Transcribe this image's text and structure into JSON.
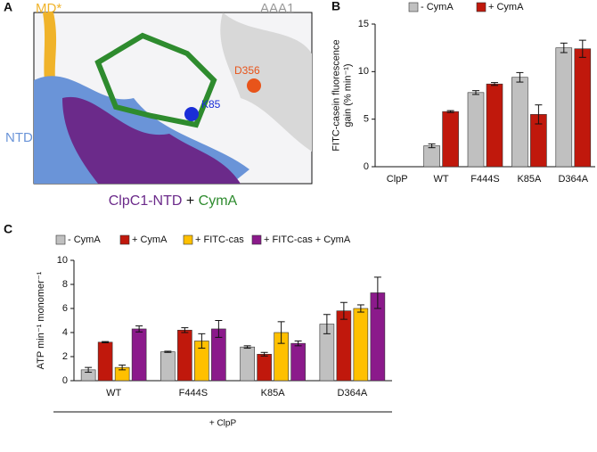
{
  "figure": {
    "panel_a": {
      "panel": "A",
      "md": "MD*",
      "aaa1": "AAA1",
      "d356": "D356",
      "k85": "K85",
      "ntd": "NTD",
      "caption_protein": "ClpC1-NTD",
      "caption_plus": "+",
      "caption_ligand": "CymA"
    }
  },
  "chart_data": [
    {
      "type": "bar",
      "panel": "B",
      "ylabel": [
        "FITC-casein fluorescence",
        "gain (% min⁻¹)"
      ],
      "categories": [
        "ClpP",
        "WT",
        "F444S",
        "K85A",
        "D364A"
      ],
      "series": [
        {
          "name": "- CymA",
          "color": "#c0c0c0",
          "values": [
            0,
            2.2,
            7.8,
            9.4,
            12.5
          ],
          "errors": [
            0,
            0.2,
            0.2,
            0.5,
            0.5
          ]
        },
        {
          "name": "+ CymA",
          "color": "#c0180c",
          "values": [
            null,
            5.8,
            8.7,
            5.5,
            12.4
          ],
          "errors": [
            null,
            0.1,
            0.15,
            1.0,
            0.9
          ]
        }
      ],
      "ylim": [
        0,
        15
      ],
      "yticks": [
        0,
        5,
        10,
        15
      ]
    },
    {
      "type": "bar",
      "panel": "C",
      "ylabel": [
        "ATP min⁻¹ monomer⁻¹"
      ],
      "categories": [
        "WT",
        "F444S",
        "K85A",
        "D364A"
      ],
      "series": [
        {
          "name": "- CymA",
          "color": "#c0c0c0",
          "values": [
            0.9,
            2.4,
            2.8,
            4.7
          ],
          "errors": [
            0.2,
            0.05,
            0.1,
            0.8
          ]
        },
        {
          "name": "+ CymA",
          "color": "#c0180c",
          "values": [
            3.2,
            4.2,
            2.2,
            5.8
          ],
          "errors": [
            0.05,
            0.2,
            0.15,
            0.7
          ]
        },
        {
          "name": "+ FITC-cas",
          "color": "#ffc000",
          "values": [
            1.1,
            3.3,
            4.0,
            6.0
          ],
          "errors": [
            0.2,
            0.6,
            0.9,
            0.3
          ]
        },
        {
          "name": "+ FITC-cas + CymA",
          "color": "#8b1a8b",
          "values": [
            4.3,
            4.3,
            3.1,
            7.3
          ],
          "errors": [
            0.25,
            0.7,
            0.2,
            1.3
          ]
        }
      ],
      "ylim": [
        0,
        10
      ],
      "yticks": [
        0,
        2,
        4,
        6,
        8,
        10
      ],
      "x_annotation": "+ ClpP"
    }
  ]
}
